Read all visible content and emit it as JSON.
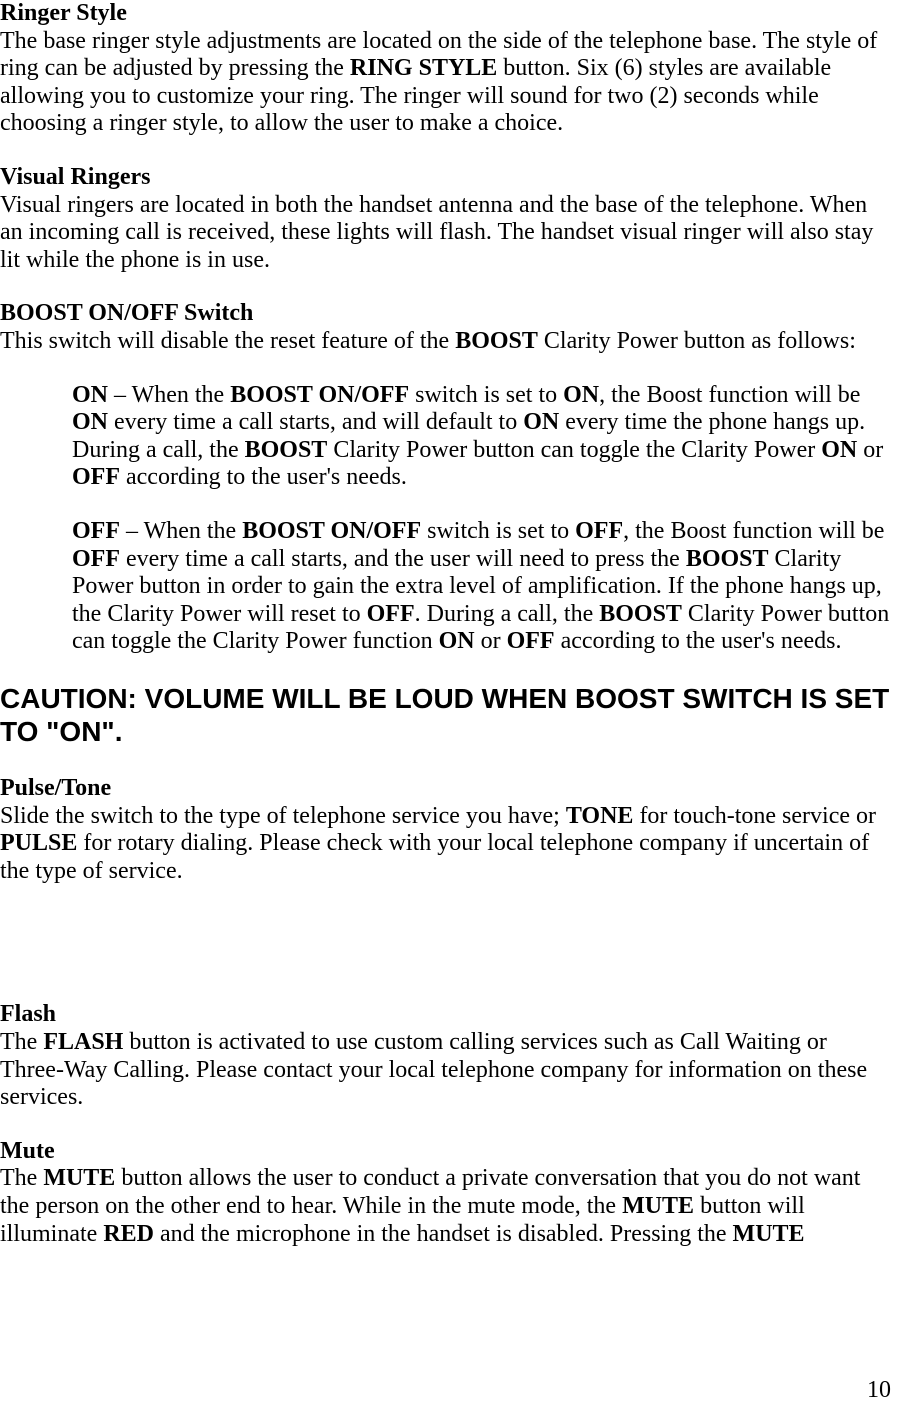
{
  "colors": {
    "text": "#000000",
    "background": "#ffffff"
  },
  "typography": {
    "body_font": "Times New Roman",
    "body_size_pt": 18,
    "caution_font": "Arial",
    "caution_size_pt": 21
  },
  "page_number": "10",
  "sections": {
    "ringer_style": {
      "heading": "Ringer Style",
      "body_pre": "The base ringer style adjustments are located on the side of the telephone base. The style of ring can be adjusted by pressing the ",
      "bold1": "RING STYLE",
      "body_post": " button. Six (6) styles are available allowing you to customize your ring.  The ringer will sound for two (2) seconds while choosing a ringer style, to allow the user to make a choice."
    },
    "visual_ringers": {
      "heading": "Visual Ringers",
      "body": "Visual ringers are located in both the handset antenna and the base of the telephone. When an incoming call is received, these lights will flash. The handset visual ringer will also stay lit while the phone is in use."
    },
    "boost_switch": {
      "heading": "BOOST ON/OFF Switch",
      "intro_pre": "This switch will disable the reset feature of the ",
      "intro_bold": "BOOST",
      "intro_post": " Clarity Power button as follows:",
      "on": {
        "b1": "ON",
        "t1": " – When the ",
        "b2": "BOOST ON/OFF",
        "t2": " switch is set to ",
        "b3": "ON",
        "t3": ", the Boost function will be ",
        "b4": "ON",
        "t4": " every time a call starts, and will default to ",
        "b5": "ON",
        "t5": " every time the phone hangs up. During a call, the ",
        "b6": "BOOST",
        "t6": " Clarity Power button can toggle the Clarity Power ",
        "b7": "ON",
        "t7": " or ",
        "b8": "OFF",
        "t8": " according to the user's needs."
      },
      "off": {
        "b1": "OFF",
        "t1": " – When the ",
        "b2": "BOOST ON/OFF",
        "t2": " switch is set to ",
        "b3": "OFF",
        "t3": ", the Boost function will be ",
        "b4": "OFF",
        "t4": " every time a call starts, and the user will need to press the ",
        "b5": "BOOST",
        "t5": " Clarity Power button in order to gain the extra level of amplification. If the phone hangs up, the Clarity Power will reset to ",
        "b6": "OFF",
        "t6": ". During a call, the ",
        "b7": "BOOST",
        "t7": " Clarity Power button can toggle the Clarity Power function ",
        "b8": "ON",
        "t8": " or ",
        "b9": "OFF",
        "t9": " according to the user's needs."
      }
    },
    "caution": "CAUTION: VOLUME WILL BE LOUD WHEN BOOST SWITCH IS SET TO \"ON\".",
    "pulse_tone": {
      "heading": "Pulse/Tone",
      "t1": "Slide the switch to the type of telephone service you have; ",
      "b1": "TONE",
      "t2": " for touch-tone service or ",
      "b2": "PULSE",
      "t3": " for rotary dialing. Please check with your local telephone company if uncertain of the type of service."
    },
    "flash": {
      "heading": "Flash",
      "t1": "The ",
      "b1": "FLASH",
      "t2": " button is activated to use custom calling services such as Call Waiting or Three-Way Calling. Please contact your local telephone company for information on these services."
    },
    "mute": {
      "heading": "Mute",
      "t1": "The ",
      "b1": "MUTE",
      "t2": " button allows the user to conduct a private conversation that you do not want the person on the other end to hear. While in the mute mode, the ",
      "b2": "MUTE",
      "t3": " button will illuminate ",
      "b3": "RED",
      "t4": " and the microphone in the handset is disabled. Pressing the ",
      "b4": "MUTE"
    }
  }
}
